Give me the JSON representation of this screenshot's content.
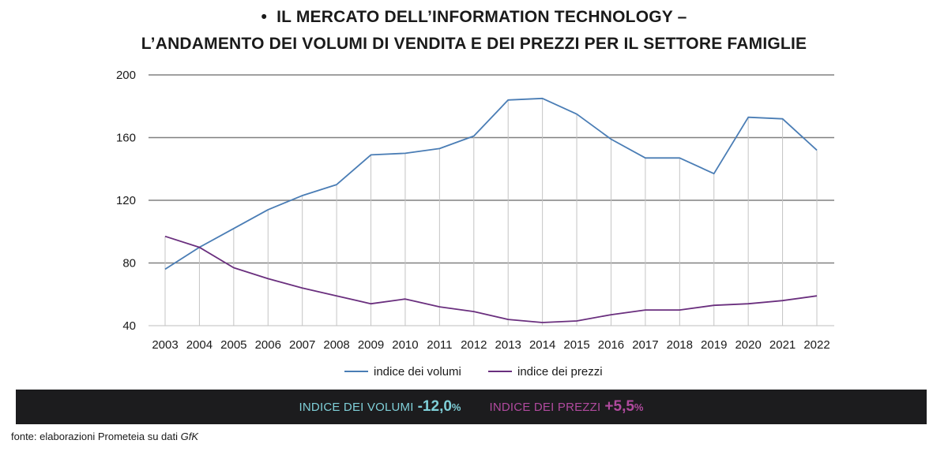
{
  "colors": {
    "volumi": "#4a7db5",
    "prezzi": "#6a2f7e",
    "grid": "#808080",
    "banner_bg": "#1c1c1e",
    "banner_volumi": "#7fcfd8",
    "banner_prezzi": "#b04a9e"
  },
  "title": {
    "bullet": "•",
    "line1": "IL MERCATO DELL’INFORMATION TECHNOLOGY –",
    "line2": "L’ANDAMENTO DEI VOLUMI DI VENDITA E DEI PREZZI PER IL SETTORE FAMIGLIE"
  },
  "chart_data": {
    "type": "line",
    "x": [
      "2003",
      "2004",
      "2005",
      "2006",
      "2007",
      "2008",
      "2009",
      "2010",
      "2011",
      "2012",
      "2013",
      "2014",
      "2015",
      "2016",
      "2017",
      "2018",
      "2019",
      "2020",
      "2021",
      "2022"
    ],
    "series": [
      {
        "name": "indice dei volumi",
        "color": "#4a7db5",
        "values": [
          76,
          90,
          102,
          114,
          123,
          130,
          149,
          150,
          153,
          161,
          184,
          185,
          175,
          159,
          147,
          147,
          137,
          173,
          172,
          152
        ]
      },
      {
        "name": "indice dei prezzi",
        "color": "#6a2f7e",
        "values": [
          97,
          90,
          77,
          70,
          64,
          59,
          54,
          57,
          52,
          49,
          44,
          42,
          43,
          47,
          50,
          50,
          53,
          54,
          56,
          59
        ]
      }
    ],
    "ylim": [
      40,
      200
    ],
    "yticks": [
      40,
      80,
      120,
      160,
      200
    ],
    "grid": true,
    "legend": "bottom"
  },
  "banner": {
    "volumi_label": "INDICE DEI VOLUMI",
    "volumi_value": "-12,0",
    "volumi_pct": "%",
    "prezzi_label": "INDICE DEI PREZZI",
    "prezzi_value": "+5,5",
    "prezzi_pct": "%"
  },
  "source": {
    "text": "fonte: elaborazioni Prometeia su dati",
    "italic": "GfK"
  }
}
